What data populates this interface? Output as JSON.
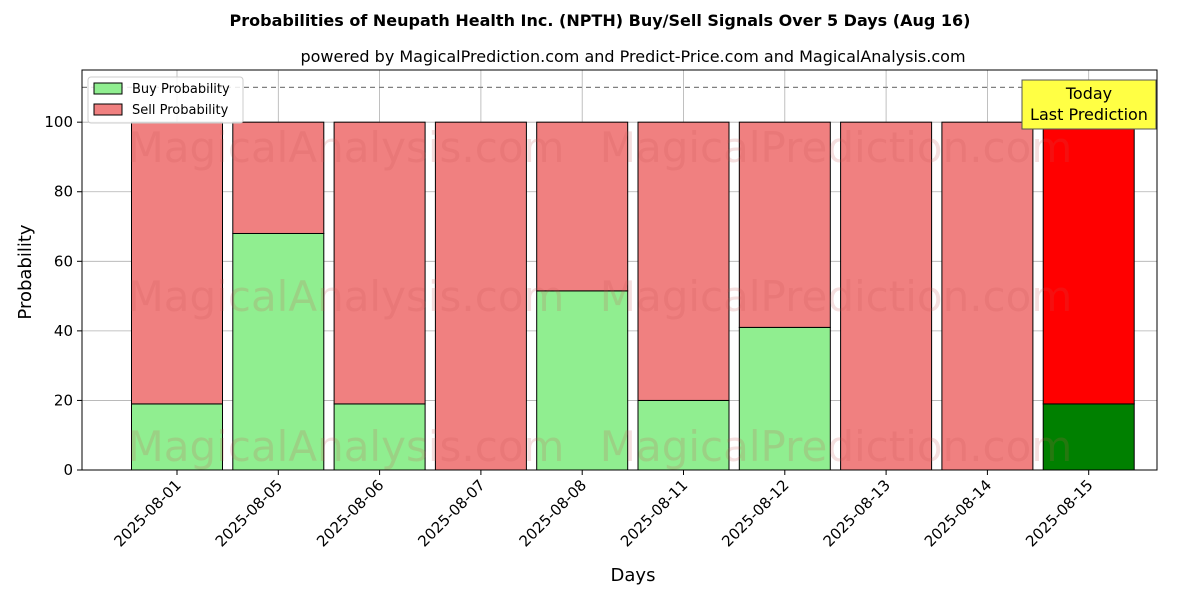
{
  "chart_data": {
    "type": "bar",
    "stacked": true,
    "title": "Probabilities of Neupath Health Inc. (NPTH) Buy/Sell Signals Over 5 Days (Aug 16)",
    "subtitle": "powered by MagicalPrediction.com and Predict-Price.com and MagicalAnalysis.com",
    "xlabel": "Days",
    "ylabel": "Probability",
    "ylim": [
      0,
      115
    ],
    "yticks": [
      0,
      20,
      40,
      60,
      80,
      100
    ],
    "categories": [
      "2025-08-01",
      "2025-08-05",
      "2025-08-06",
      "2025-08-07",
      "2025-08-08",
      "2025-08-11",
      "2025-08-12",
      "2025-08-13",
      "2025-08-14",
      "2025-08-15"
    ],
    "series": [
      {
        "name": "Buy Probability",
        "values": [
          19,
          68,
          19,
          0,
          51.5,
          20,
          41,
          0,
          0,
          19
        ]
      },
      {
        "name": "Sell Probability",
        "values": [
          81,
          32,
          81,
          100,
          48.5,
          80,
          59,
          100,
          100,
          81
        ]
      }
    ],
    "colors": {
      "buy": "#90ee90",
      "sell": "#f08080",
      "buy_highlight": "#008000",
      "sell_highlight": "#ff0000",
      "annotation_bg": "#ffff44"
    },
    "reference_line": 110,
    "grid": true,
    "legend_position": "top-left",
    "annotation": {
      "line1": "Today",
      "line2": "Last Prediction"
    },
    "watermarks": [
      "MagicalAnalysis.com",
      "MagicalPrediction.com"
    ]
  }
}
